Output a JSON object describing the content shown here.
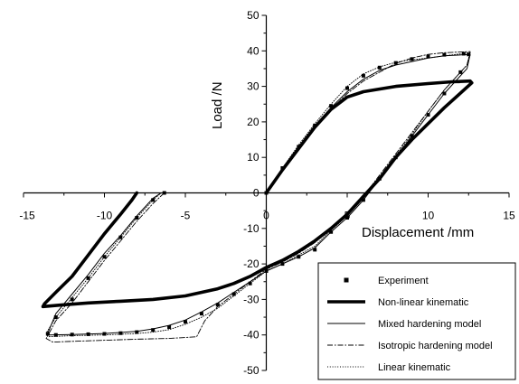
{
  "chart_data": {
    "type": "line",
    "title": "",
    "xlabel": "Displacement /mm",
    "ylabel": "Load /N",
    "xlim": [
      -15,
      15
    ],
    "ylim": [
      -50,
      50
    ],
    "xticks": [
      -15,
      -10,
      -5,
      0,
      5,
      10,
      15
    ],
    "yticks": [
      -50,
      -40,
      -30,
      -20,
      -10,
      0,
      10,
      20,
      30,
      40,
      50
    ],
    "grid": false,
    "legend_position": "bottom-right",
    "series": [
      {
        "name": "Experiment",
        "style": "markers",
        "points": [
          [
            0,
            0
          ],
          [
            1,
            7
          ],
          [
            2,
            13
          ],
          [
            3,
            19
          ],
          [
            4,
            24.5
          ],
          [
            5,
            29.5
          ],
          [
            6,
            33
          ],
          [
            7,
            35.3
          ],
          [
            8,
            36.6
          ],
          [
            9,
            37.7
          ],
          [
            10,
            38.4
          ],
          [
            11,
            38.9
          ],
          [
            12.2,
            39.2
          ],
          [
            12.5,
            39
          ],
          [
            12,
            34
          ],
          [
            11,
            28
          ],
          [
            10,
            22
          ],
          [
            9,
            16
          ],
          [
            8,
            10
          ],
          [
            7,
            4
          ],
          [
            6,
            -2
          ],
          [
            5,
            -7
          ],
          [
            4,
            -11
          ],
          [
            3,
            -16
          ],
          [
            2,
            -18
          ],
          [
            1,
            -20
          ],
          [
            0,
            -22
          ],
          [
            -1,
            -25.5
          ],
          [
            -2,
            -28.5
          ],
          [
            -3,
            -31.5
          ],
          [
            -4,
            -34
          ],
          [
            -5,
            -36.3
          ],
          [
            -6,
            -37.8
          ],
          [
            -7,
            -38.6
          ],
          [
            -8,
            -39.2
          ],
          [
            -9,
            -39.5
          ],
          [
            -10,
            -39.7
          ],
          [
            -11,
            -39.8
          ],
          [
            -12,
            -39.9
          ],
          [
            -13,
            -40
          ],
          [
            -13.5,
            -39.7
          ],
          [
            -13,
            -35
          ],
          [
            -12,
            -30
          ],
          [
            -11,
            -24
          ],
          [
            -10,
            -18
          ],
          [
            -9,
            -12.5
          ],
          [
            -8,
            -7
          ],
          [
            -7,
            -2
          ],
          [
            -6.3,
            0
          ]
        ]
      },
      {
        "name": "Non-linear kinematic",
        "style": "thick",
        "points": [
          [
            0,
            0
          ],
          [
            1,
            6.5
          ],
          [
            2,
            12.5
          ],
          [
            3,
            18.5
          ],
          [
            4,
            23.5
          ],
          [
            5,
            27
          ],
          [
            6,
            28.5
          ],
          [
            8,
            30
          ],
          [
            10,
            30.8
          ],
          [
            11.5,
            31.3
          ],
          [
            12.6,
            31.5
          ],
          [
            12.7,
            31
          ],
          [
            11,
            24
          ],
          [
            9,
            15
          ],
          [
            8,
            10
          ],
          [
            7,
            4
          ],
          [
            6,
            -1
          ],
          [
            5,
            -6
          ],
          [
            4,
            -10
          ],
          [
            3,
            -13.5
          ],
          [
            2,
            -16.5
          ],
          [
            1,
            -19
          ],
          [
            0,
            -21
          ],
          [
            -1,
            -23.5
          ],
          [
            -2,
            -25.5
          ],
          [
            -3,
            -27
          ],
          [
            -5,
            -29
          ],
          [
            -7,
            -30
          ],
          [
            -9,
            -30.5
          ],
          [
            -11,
            -31
          ],
          [
            -12.5,
            -31.5
          ],
          [
            -13.8,
            -32
          ],
          [
            -13.7,
            -31.2
          ],
          [
            -13,
            -28
          ],
          [
            -12,
            -23.5
          ],
          [
            -11,
            -17.5
          ],
          [
            -10,
            -11.5
          ],
          [
            -9,
            -6
          ],
          [
            -8.3,
            -2
          ],
          [
            -8,
            0
          ]
        ]
      },
      {
        "name": "Mixed hardening model",
        "style": "solid",
        "points": [
          [
            0,
            0
          ],
          [
            1,
            6.8
          ],
          [
            2,
            13
          ],
          [
            3,
            19
          ],
          [
            4,
            24
          ],
          [
            5,
            28.5
          ],
          [
            6,
            32
          ],
          [
            7,
            34.5
          ],
          [
            8,
            36
          ],
          [
            9,
            37
          ],
          [
            10,
            38
          ],
          [
            11,
            38.6
          ],
          [
            12.6,
            39
          ],
          [
            12.4,
            35
          ],
          [
            11,
            28
          ],
          [
            10,
            22
          ],
          [
            9,
            16
          ],
          [
            8,
            10
          ],
          [
            7,
            4
          ],
          [
            6,
            -2
          ],
          [
            5,
            -7
          ],
          [
            4,
            -11
          ],
          [
            3,
            -15.5
          ],
          [
            2,
            -18
          ],
          [
            1,
            -20
          ],
          [
            0,
            -22
          ],
          [
            -1,
            -25
          ],
          [
            -2,
            -28
          ],
          [
            -3,
            -31
          ],
          [
            -4,
            -33.5
          ],
          [
            -5,
            -35.8
          ],
          [
            -6,
            -37.3
          ],
          [
            -7,
            -38.3
          ],
          [
            -8,
            -39
          ],
          [
            -10,
            -39.6
          ],
          [
            -12,
            -39.9
          ],
          [
            -13.5,
            -40
          ],
          [
            -13.5,
            -39.5
          ],
          [
            -13,
            -34
          ],
          [
            -12,
            -28.5
          ],
          [
            -11,
            -23
          ],
          [
            -10,
            -17
          ],
          [
            -9,
            -12
          ],
          [
            -8,
            -6.5
          ],
          [
            -7,
            -1.5
          ],
          [
            -6.5,
            0
          ]
        ]
      },
      {
        "name": "Isotropic hardening model",
        "style": "dashdot",
        "points": [
          [
            0,
            0
          ],
          [
            1,
            6.5
          ],
          [
            2,
            12.5
          ],
          [
            3,
            18.5
          ],
          [
            4,
            23.5
          ],
          [
            5,
            28
          ],
          [
            6,
            31.5
          ],
          [
            7,
            34
          ],
          [
            8,
            36.5
          ],
          [
            9,
            38
          ],
          [
            10,
            39
          ],
          [
            11,
            39.5
          ],
          [
            12.6,
            39.8
          ],
          [
            12.4,
            36
          ],
          [
            11,
            29
          ],
          [
            10,
            23
          ],
          [
            9,
            17
          ],
          [
            8,
            11
          ],
          [
            7,
            5
          ],
          [
            6,
            -1
          ],
          [
            5,
            -6
          ],
          [
            4,
            -10
          ],
          [
            3,
            -14
          ],
          [
            2,
            -17
          ],
          [
            1,
            -19.5
          ],
          [
            0,
            -21.5
          ],
          [
            -1,
            -25
          ],
          [
            -2,
            -28.5
          ],
          [
            -3,
            -32
          ],
          [
            -3.8,
            -36
          ],
          [
            -4.3,
            -40.5
          ],
          [
            -6,
            -41
          ],
          [
            -8,
            -41.2
          ],
          [
            -10,
            -41.5
          ],
          [
            -12,
            -41.8
          ],
          [
            -13.2,
            -42
          ],
          [
            -13.6,
            -41
          ],
          [
            -13,
            -36
          ],
          [
            -12,
            -31
          ],
          [
            -11,
            -25
          ],
          [
            -10,
            -19
          ],
          [
            -9,
            -13.5
          ],
          [
            -8,
            -8
          ],
          [
            -7,
            -3
          ],
          [
            -6.3,
            0
          ]
        ]
      },
      {
        "name": "Linear kinematic",
        "style": "dotted",
        "points": [
          [
            0,
            0
          ],
          [
            1,
            7
          ],
          [
            2,
            13.5
          ],
          [
            3,
            19.5
          ],
          [
            4,
            25
          ],
          [
            5,
            30
          ],
          [
            6,
            33.5
          ],
          [
            7,
            35.5
          ],
          [
            8,
            36.8
          ],
          [
            9,
            37.5
          ],
          [
            10,
            38
          ],
          [
            11,
            38.6
          ],
          [
            12.6,
            39.5
          ],
          [
            12.4,
            36
          ],
          [
            11,
            29
          ],
          [
            10,
            23
          ],
          [
            9,
            16.5
          ],
          [
            8,
            10.5
          ],
          [
            7,
            4.5
          ],
          [
            6,
            -1.5
          ],
          [
            5,
            -6.5
          ],
          [
            4,
            -10.5
          ],
          [
            3,
            -15
          ],
          [
            2,
            -17.5
          ],
          [
            1,
            -20
          ],
          [
            0,
            -22
          ],
          [
            -1,
            -25.5
          ],
          [
            -2,
            -29
          ],
          [
            -3,
            -32.5
          ],
          [
            -4,
            -35
          ],
          [
            -5,
            -37
          ],
          [
            -6,
            -38.5
          ],
          [
            -7,
            -39.2
          ],
          [
            -8,
            -39.6
          ],
          [
            -10,
            -40
          ],
          [
            -12,
            -40.2
          ],
          [
            -13.5,
            -40.5
          ],
          [
            -13.6,
            -39.5
          ],
          [
            -13,
            -35
          ],
          [
            -12,
            -29.5
          ],
          [
            -11,
            -24
          ],
          [
            -10,
            -18
          ],
          [
            -9,
            -12.5
          ],
          [
            -8,
            -7
          ],
          [
            -7,
            -2
          ],
          [
            -6.5,
            0
          ]
        ]
      }
    ]
  }
}
